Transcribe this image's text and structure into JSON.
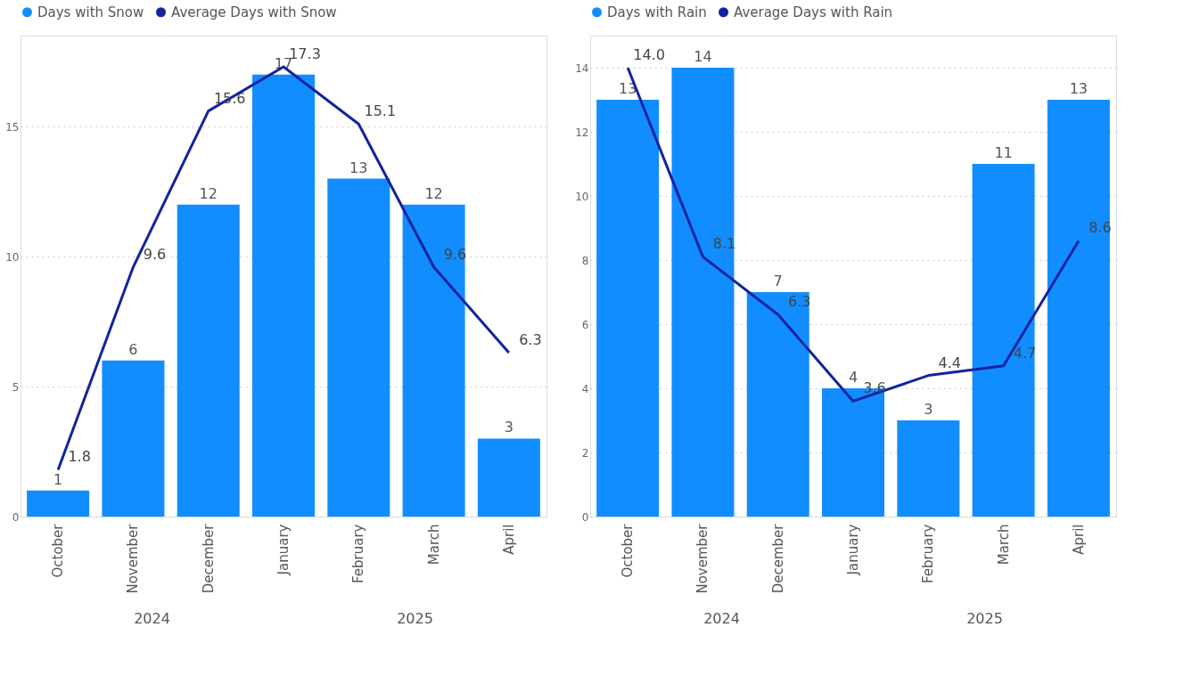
{
  "chart_data": [
    {
      "type": "bar",
      "categories": [
        "October",
        "November",
        "December",
        "January",
        "February",
        "March",
        "April"
      ],
      "ylim": [
        0,
        18.5
      ],
      "yticks": [
        0,
        5,
        10,
        15
      ],
      "grid": "y",
      "legend": "top left",
      "data_labels": true,
      "marker": "none",
      "line_style": "solid",
      "series": [
        {
          "name": "Days with Snow",
          "color": "#118dff",
          "values": [
            1,
            6,
            12,
            17,
            13,
            12,
            3
          ]
        },
        {
          "name": "Average Days with Snow",
          "type": "line",
          "color": "#12239e",
          "values": [
            1.8,
            9.6,
            15.6,
            17.3,
            15.1,
            9.6,
            6.3
          ],
          "value_labels": [
            "1.8",
            "9.6",
            "15.6",
            "17.3",
            "15.1",
            "9.6",
            "6.3"
          ]
        }
      ],
      "annotations": [
        "2024",
        "2025"
      ]
    },
    {
      "type": "bar",
      "categories": [
        "October",
        "November",
        "December",
        "January",
        "February",
        "March",
        "April"
      ],
      "ylim": [
        0,
        15
      ],
      "yticks": [
        0,
        2,
        4,
        6,
        8,
        10,
        12,
        14
      ],
      "grid": "y",
      "legend": "top left",
      "data_labels": true,
      "marker": "none",
      "line_style": "solid",
      "series": [
        {
          "name": "Days with Rain",
          "color": "#118dff",
          "values": [
            13,
            14,
            7,
            4,
            3,
            11,
            13
          ]
        },
        {
          "name": "Average Days with Rain",
          "type": "line",
          "color": "#12239e",
          "values": [
            14.0,
            8.1,
            6.3,
            3.6,
            4.4,
            4.7,
            8.6
          ],
          "value_labels": [
            "14.0",
            "8.1",
            "6.3",
            "3.6",
            "4.4",
            "4.7",
            "8.6"
          ]
        }
      ],
      "annotations": [
        "2024",
        "2025"
      ]
    }
  ]
}
